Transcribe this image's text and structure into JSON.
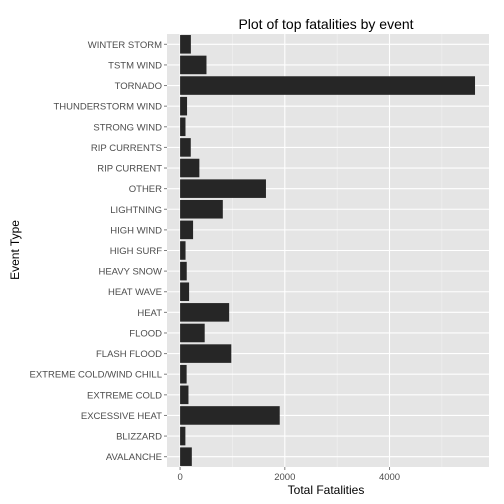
{
  "chart_data": {
    "type": "bar",
    "orientation": "horizontal",
    "title": "Plot of top fatalities by event",
    "xlabel": "Total Fatalities",
    "ylabel": "Event Type",
    "xlim": [
      -250,
      5900
    ],
    "x_ticks": [
      0,
      2000,
      4000
    ],
    "grid": true,
    "categories": [
      "AVALANCHE",
      "BLIZZARD",
      "EXCESSIVE HEAT",
      "EXTREME COLD",
      "EXTREME COLD/WIND CHILL",
      "FLASH FLOOD",
      "FLOOD",
      "HEAT",
      "HEAT WAVE",
      "HEAVY SNOW",
      "HIGH SURF",
      "HIGH WIND",
      "LIGHTNING",
      "OTHER",
      "RIP CURRENT",
      "RIP CURRENTS",
      "STRONG WIND",
      "THUNDERSTORM WIND",
      "TORNADO",
      "TSTM WIND",
      "WINTER STORM"
    ],
    "values": [
      224,
      101,
      1903,
      160,
      125,
      978,
      470,
      937,
      172,
      127,
      104,
      248,
      816,
      1640,
      368,
      204,
      103,
      133,
      5633,
      504,
      206
    ],
    "colors": {
      "bar": "#262626",
      "panel": "#e5e5e5",
      "grid_major": "#ffffff",
      "grid_minor": "#f2f2f2"
    }
  }
}
